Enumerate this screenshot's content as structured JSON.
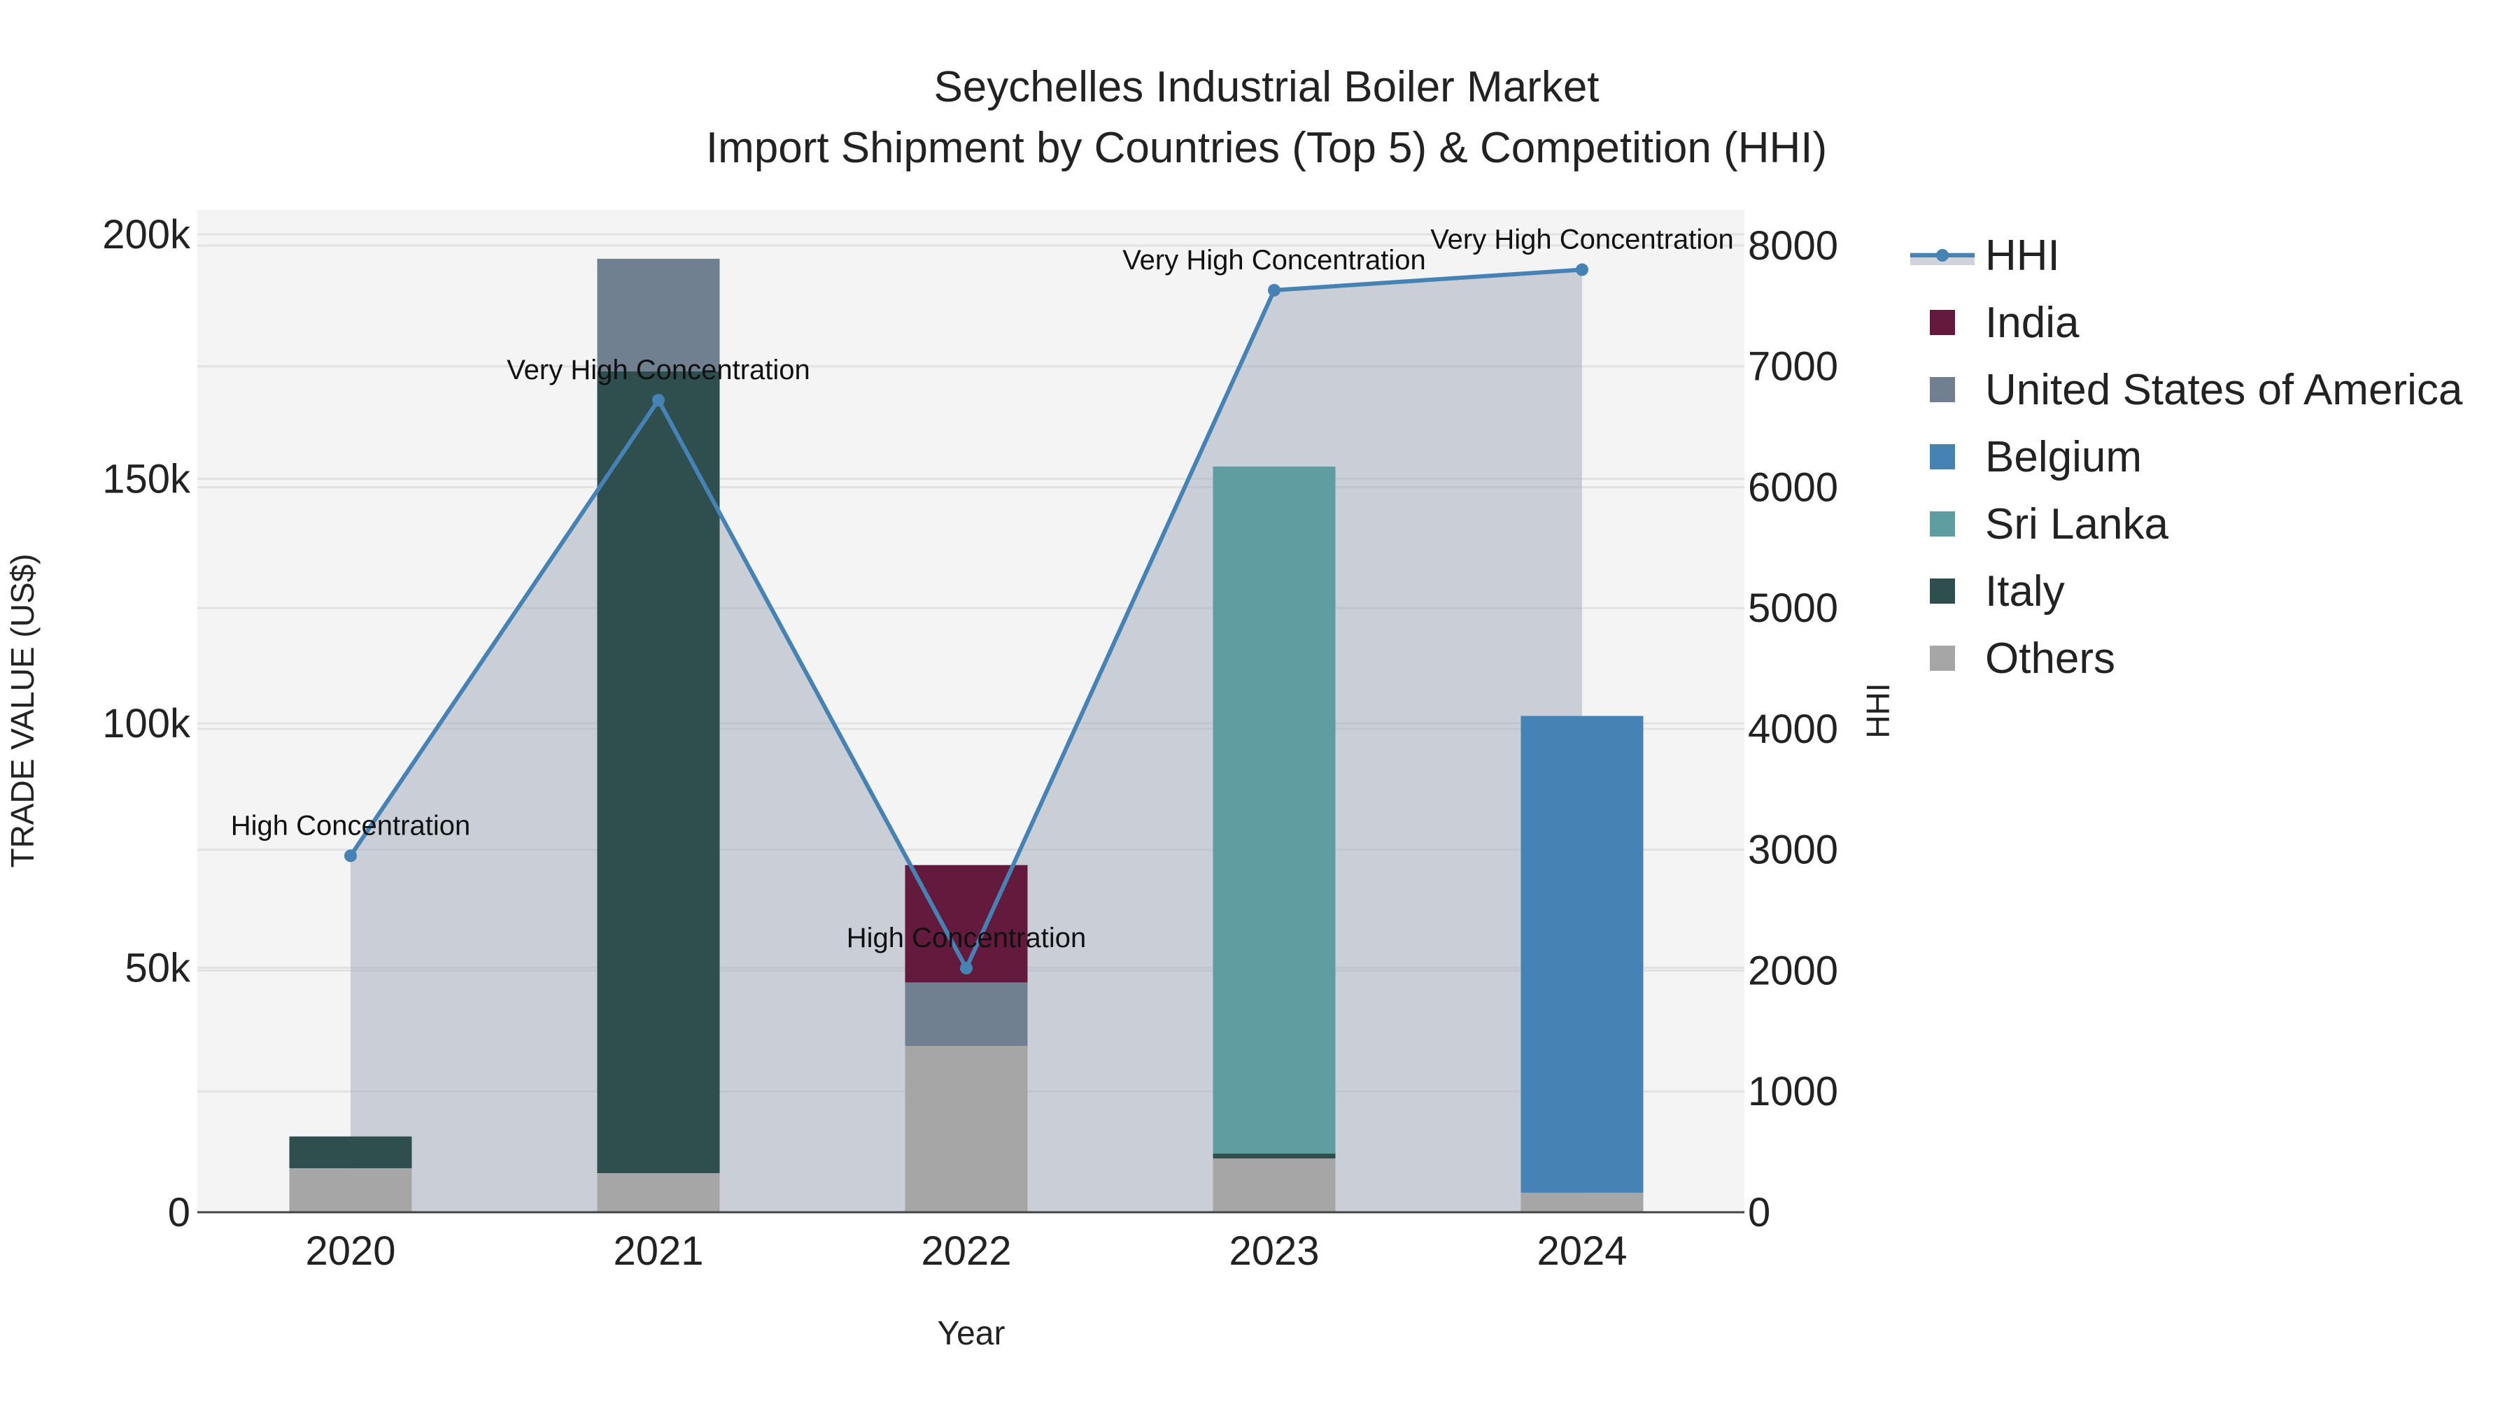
{
  "chart_data": {
    "type": "bar",
    "title": "Seychelles Industrial Boiler Market",
    "subtitle": "Import Shipment by Countries (Top 5) & Competition (HHI)",
    "xlabel": "Year",
    "ylabel": "TRADE VALUE (US$)",
    "y2label": "HHI",
    "categories": [
      "2020",
      "2021",
      "2022",
      "2023",
      "2024"
    ],
    "ylim": [
      0,
      205000
    ],
    "y2lim": [
      0,
      8295
    ],
    "yticks": [
      0,
      50000,
      100000,
      150000,
      200000
    ],
    "ytick_labels": [
      "0",
      "50k",
      "100k",
      "150k",
      "200k"
    ],
    "y2ticks": [
      0,
      1000,
      2000,
      3000,
      4000,
      5000,
      6000,
      7000,
      8000
    ],
    "y2tick_labels": [
      "0",
      "1000",
      "2000",
      "3000",
      "4000",
      "5000",
      "6000",
      "7000",
      "8000"
    ],
    "series": [
      {
        "name": "Others",
        "color": "#a6a6a6",
        "values": [
          9000,
          8000,
          34000,
          11000,
          4000
        ]
      },
      {
        "name": "Italy",
        "color": "#2f4f4f",
        "values": [
          6500,
          164000,
          0,
          1000,
          0
        ]
      },
      {
        "name": "Sri Lanka",
        "color": "#5f9ea0",
        "values": [
          0,
          0,
          0,
          140500,
          0
        ]
      },
      {
        "name": "Belgium",
        "color": "#4682b4",
        "values": [
          0,
          0,
          0,
          0,
          97500
        ]
      },
      {
        "name": "United States of America",
        "color": "#708090",
        "values": [
          0,
          23000,
          13000,
          0,
          0
        ]
      },
      {
        "name": "India",
        "color": "#641a3c",
        "values": [
          0,
          0,
          24000,
          0,
          0
        ]
      }
    ],
    "legend_order": [
      "HHI",
      "India",
      "United States of America",
      "Belgium",
      "Sri Lanka",
      "Italy",
      "Others"
    ],
    "hhi": {
      "name": "HHI",
      "color": "#4682b4",
      "values": [
        2950,
        6720,
        2020,
        7630,
        7800
      ],
      "annotations": [
        "High Concentration",
        "Very High Concentration",
        "High Concentration",
        "Very High Concentration",
        "Very High Concentration"
      ]
    },
    "legend_position": "right",
    "grid": true
  }
}
